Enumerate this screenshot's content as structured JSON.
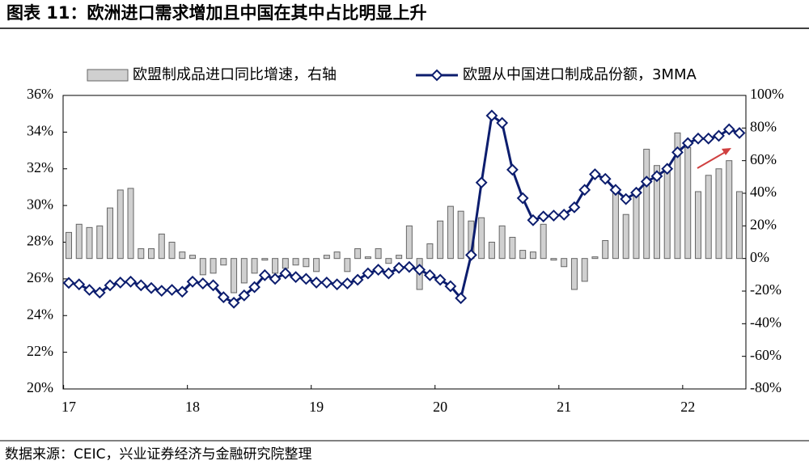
{
  "chart_data": {
    "type": "bar+line",
    "title": "图表 11：欧洲进口需求增加且中国在其中占比明显上升",
    "source": "数据来源：CEIC，兴业证券经济与金融研究院整理",
    "categories": [
      "17",
      null,
      null,
      null,
      null,
      null,
      null,
      null,
      null,
      null,
      null,
      null,
      "18",
      null,
      null,
      null,
      null,
      null,
      null,
      null,
      null,
      null,
      null,
      null,
      "19",
      null,
      null,
      null,
      null,
      null,
      null,
      null,
      null,
      null,
      null,
      null,
      "20",
      null,
      null,
      null,
      null,
      null,
      null,
      null,
      null,
      null,
      null,
      null,
      "21",
      null,
      null,
      null,
      null,
      null,
      null,
      null,
      null,
      null,
      null,
      null,
      "22",
      null,
      null,
      null,
      null,
      null
    ],
    "series": [
      {
        "name": "欧盟制成品进口同比增速，右轴",
        "type": "bar",
        "axis": "y2",
        "color": "#d0d0d0",
        "values": [
          16,
          21,
          19,
          20,
          31,
          42,
          43,
          6,
          6,
          15,
          10,
          4,
          2,
          -10,
          -9,
          -4,
          -21,
          -15,
          -9,
          -1,
          -9,
          -6,
          -4,
          -5,
          -8,
          2,
          4,
          -8,
          6,
          1,
          6,
          -3,
          2,
          20,
          -19,
          9,
          23,
          32,
          29,
          23,
          25,
          10,
          20,
          13,
          5,
          4,
          21,
          -1,
          -5,
          -19,
          -14,
          1,
          11,
          41,
          27,
          40,
          67,
          57,
          54,
          77,
          68,
          41,
          51,
          55,
          60,
          41
        ]
      },
      {
        "name": "欧盟从中国进口制成品份额，3MMA",
        "type": "line",
        "axis": "y",
        "color": "#0c1d6e",
        "values": [
          25.78,
          25.7,
          25.4,
          25.25,
          25.65,
          25.8,
          25.85,
          25.65,
          25.5,
          25.35,
          25.4,
          25.3,
          25.85,
          25.75,
          25.65,
          25.0,
          24.7,
          25.1,
          25.55,
          26.2,
          26.0,
          26.3,
          26.1,
          26.0,
          25.8,
          25.8,
          25.7,
          25.75,
          25.95,
          26.3,
          26.5,
          26.3,
          26.6,
          26.65,
          26.5,
          26.2,
          25.95,
          25.6,
          24.95,
          27.3,
          31.25,
          34.9,
          34.5,
          31.95,
          30.4,
          29.2,
          29.4,
          29.45,
          29.5,
          29.9,
          30.85,
          31.7,
          31.45,
          30.85,
          30.35,
          30.7,
          31.3,
          31.6,
          32.0,
          32.9,
          33.4,
          33.65,
          33.65,
          33.8,
          34.15,
          33.95
        ]
      }
    ],
    "ylim": [
      20,
      36
    ],
    "yticks": [
      {
        "value": 20,
        "label": "20%"
      },
      {
        "value": 22,
        "label": "22%"
      },
      {
        "value": 24,
        "label": "24%"
      },
      {
        "value": 26,
        "label": "26%"
      },
      {
        "value": 28,
        "label": "28%"
      },
      {
        "value": 30,
        "label": "30%"
      },
      {
        "value": 32,
        "label": "32%"
      },
      {
        "value": 34,
        "label": "34%"
      },
      {
        "value": 36,
        "label": "36%"
      }
    ],
    "y2lim": [
      -80,
      100
    ],
    "y2ticks": [
      {
        "value": -80,
        "label": "-80%"
      },
      {
        "value": -60,
        "label": "-60%"
      },
      {
        "value": -40,
        "label": "-40%"
      },
      {
        "value": -20,
        "label": "-20%"
      },
      {
        "value": 0,
        "label": "0%"
      },
      {
        "value": 20,
        "label": "20%"
      },
      {
        "value": 40,
        "label": "40%"
      },
      {
        "value": 60,
        "label": "60%"
      },
      {
        "value": 80,
        "label": "80%"
      },
      {
        "value": 100,
        "label": "100%"
      }
    ],
    "legend": "top"
  }
}
